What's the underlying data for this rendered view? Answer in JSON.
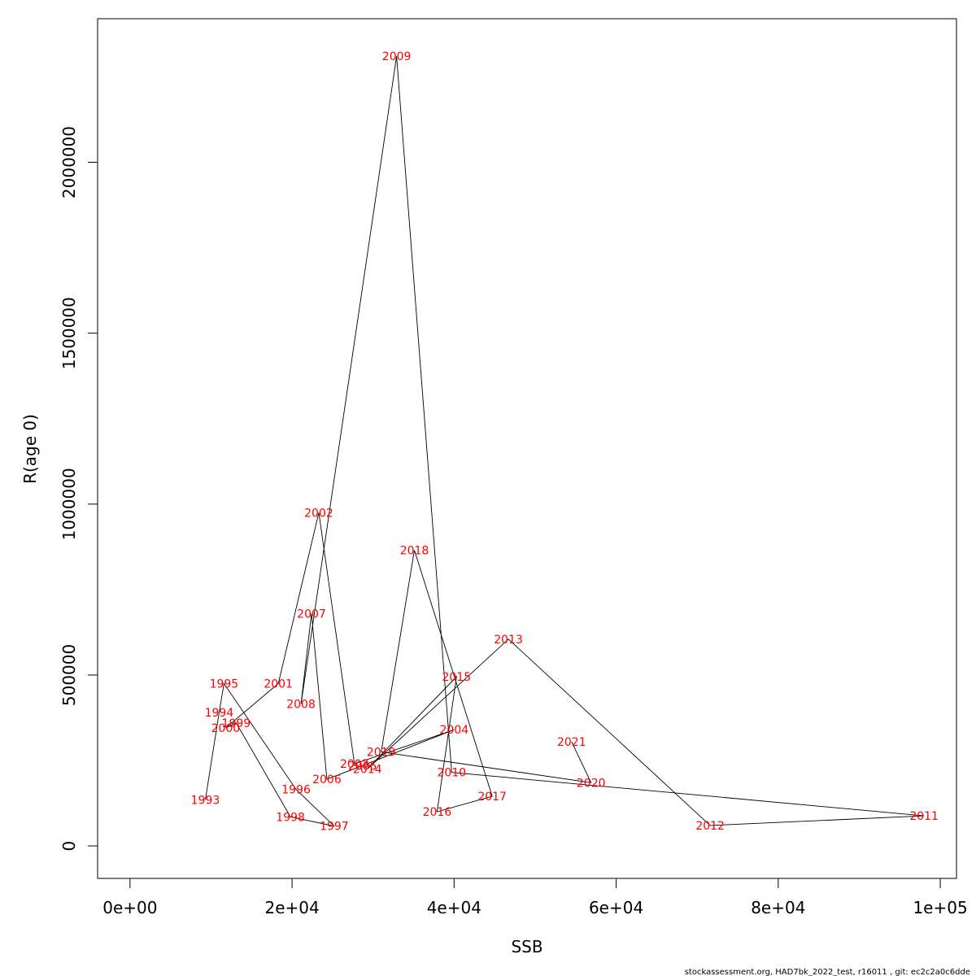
{
  "chart_data": {
    "type": "line",
    "xlabel": "SSB",
    "ylabel": "R(age 0)",
    "xlim": [
      -4000,
      102000
    ],
    "ylim": [
      -95000,
      2420000
    ],
    "x_ticks": [
      0,
      20000,
      40000,
      60000,
      80000,
      100000
    ],
    "x_tick_labels": [
      "0e+00",
      "2e+04",
      "4e+04",
      "6e+04",
      "8e+04",
      "1e+05"
    ],
    "y_ticks": [
      0,
      500000,
      1000000,
      1500000,
      2000000
    ],
    "y_tick_labels": [
      "0",
      "500000",
      "1000000",
      "1500000",
      "2000000"
    ],
    "grid": false,
    "label_color": "#ff0000",
    "line_color": "#000000",
    "points": [
      {
        "year": "1993",
        "x": 9300,
        "y": 135000
      },
      {
        "year": "1994",
        "x": 11000,
        "y": 390000
      },
      {
        "year": "1995",
        "x": 11600,
        "y": 475000
      },
      {
        "year": "1996",
        "x": 20500,
        "y": 165000
      },
      {
        "year": "1997",
        "x": 25200,
        "y": 58000
      },
      {
        "year": "1998",
        "x": 19800,
        "y": 85000
      },
      {
        "year": "1999",
        "x": 13100,
        "y": 360000
      },
      {
        "year": "2000",
        "x": 11800,
        "y": 345000
      },
      {
        "year": "2001",
        "x": 18300,
        "y": 475000
      },
      {
        "year": "2002",
        "x": 23300,
        "y": 975000
      },
      {
        "year": "2003",
        "x": 27700,
        "y": 240000
      },
      {
        "year": "2004",
        "x": 40000,
        "y": 340000
      },
      {
        "year": "2005",
        "x": 28700,
        "y": 235000
      },
      {
        "year": "2006",
        "x": 24300,
        "y": 195000
      },
      {
        "year": "2007",
        "x": 22400,
        "y": 680000
      },
      {
        "year": "2008",
        "x": 21100,
        "y": 415000
      },
      {
        "year": "2009",
        "x": 32900,
        "y": 2310000
      },
      {
        "year": "2010",
        "x": 39700,
        "y": 215000
      },
      {
        "year": "2011",
        "x": 98000,
        "y": 88000
      },
      {
        "year": "2012",
        "x": 71600,
        "y": 60000
      },
      {
        "year": "2013",
        "x": 46700,
        "y": 605000
      },
      {
        "year": "2014",
        "x": 29300,
        "y": 225000
      },
      {
        "year": "2015",
        "x": 40300,
        "y": 495000
      },
      {
        "year": "2016",
        "x": 37900,
        "y": 100000
      },
      {
        "year": "2017",
        "x": 44700,
        "y": 145000
      },
      {
        "year": "2018",
        "x": 35100,
        "y": 865000
      },
      {
        "year": "2019",
        "x": 31000,
        "y": 275000
      },
      {
        "year": "2020",
        "x": 56900,
        "y": 185000
      },
      {
        "year": "2021",
        "x": 54500,
        "y": 305000
      }
    ]
  },
  "footer": {
    "text": "stockassessment.org, HAD7bk_2022_test, r16011 , git: ec2c2a0c6dde"
  }
}
